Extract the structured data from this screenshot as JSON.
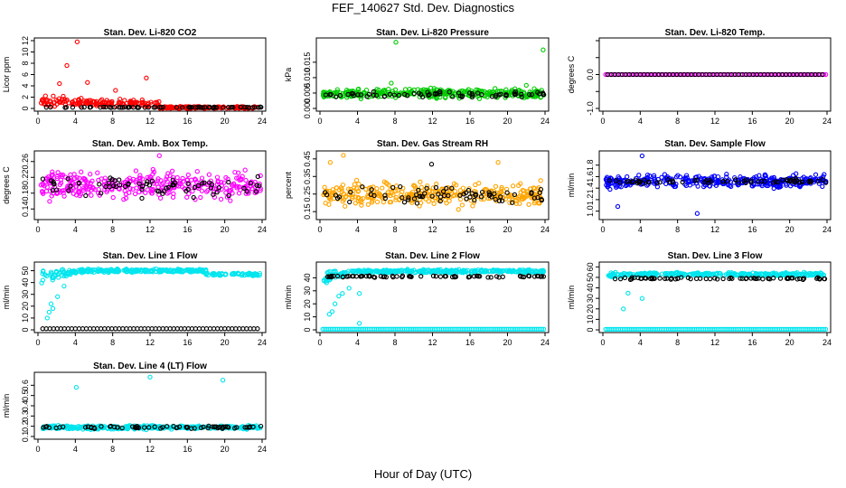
{
  "figure": {
    "title": "FEF_140627  Std. Dev. Diagnostics",
    "xlabel": "Hour of Day (UTC)"
  },
  "chart_data": [
    {
      "type": "scatter",
      "title": "Stan. Dev. Li-820 CO2",
      "ylabel": "Licor ppm",
      "xlim": [
        0,
        24
      ],
      "xticks": [
        0,
        4,
        8,
        12,
        16,
        20,
        24
      ],
      "ylim": [
        0,
        12
      ],
      "yticks": [
        0,
        2,
        4,
        6,
        8,
        10,
        12
      ],
      "ytick_labels": [
        "0",
        "2",
        "4",
        "6",
        "8",
        "10",
        "12"
      ],
      "series": [
        {
          "color": "#ff0000",
          "pattern": "decay",
          "base": 0.3,
          "level": 1.4,
          "spread": 2.0,
          "until": 13,
          "late": 0.35,
          "extra": [
            [
              4.2,
              11.8
            ],
            [
              3.1,
              7.6
            ],
            [
              2.3,
              4.4
            ],
            [
              5.3,
              4.6
            ],
            [
              11.6,
              5.4
            ],
            [
              8.3,
              3.2
            ]
          ]
        },
        {
          "color": "#000000",
          "pattern": "sparse",
          "base": 0.2,
          "spread": 0.1
        }
      ]
    },
    {
      "type": "scatter",
      "title": "Stan. Dev. Li-820 Pressure",
      "ylabel": "kPa",
      "xlim": [
        0,
        24
      ],
      "xticks": [
        0,
        4,
        8,
        12,
        16,
        20,
        24
      ],
      "ylim": [
        0,
        0.022
      ],
      "yticks": [
        0,
        0.005,
        0.01,
        0.015
      ],
      "ytick_labels": [
        "0.000",
        "0.005",
        "0.010",
        "0.015"
      ],
      "series": [
        {
          "color": "#00cc00",
          "pattern": "band",
          "base": 0.0048,
          "spread": 0.0026,
          "extra": [
            [
              8.1,
              0.0215
            ],
            [
              23.8,
              0.019
            ],
            [
              22.0,
              0.0075
            ],
            [
              7.6,
              0.0082
            ]
          ]
        },
        {
          "color": "#000000",
          "pattern": "sparse",
          "base": 0.0045,
          "spread": 0.0015
        }
      ]
    },
    {
      "type": "scatter",
      "title": "Stan. Dev. Li-820 Temp.",
      "ylabel": "degrees C",
      "xlim": [
        0,
        24
      ],
      "xticks": [
        0,
        4,
        8,
        12,
        16,
        20,
        24
      ],
      "ylim": [
        -1,
        1
      ],
      "yticks": [
        -1,
        -0.5,
        0,
        0.5,
        1
      ],
      "ytick_labels": [
        "-1.0",
        "0.0",
        "1.0"
      ],
      "series": [
        {
          "color": "#ff00ff",
          "pattern": "flat",
          "base": 0,
          "spread": 0
        },
        {
          "color": "#000000",
          "pattern": "flat-sparse",
          "base": 0,
          "spread": 0
        }
      ]
    },
    {
      "type": "scatter",
      "title": "Stan. Dev. Amb. Box Temp.",
      "ylabel": "degrees C",
      "xlim": [
        0,
        24
      ],
      "xticks": [
        0,
        4,
        8,
        12,
        16,
        20,
        24
      ],
      "ylim": [
        0.12,
        0.28
      ],
      "yticks": [
        0.14,
        0.18,
        0.22,
        0.26
      ],
      "ytick_labels": [
        "0.14",
        "0.18",
        "0.22",
        "0.26"
      ],
      "series": [
        {
          "color": "#ff00ff",
          "pattern": "band",
          "base": 0.2,
          "spread": 0.055,
          "extra": [
            [
              13.0,
              0.275
            ]
          ]
        },
        {
          "color": "#000000",
          "pattern": "sparse",
          "base": 0.2,
          "spread": 0.045
        }
      ]
    },
    {
      "type": "scatter",
      "title": "Stan. Dev. Gas Stream RH",
      "ylabel": "percent",
      "xlim": [
        0,
        24
      ],
      "xticks": [
        0,
        4,
        8,
        12,
        16,
        20,
        24
      ],
      "ylim": [
        0.12,
        0.48
      ],
      "yticks": [
        0.15,
        0.25,
        0.35,
        0.45
      ],
      "ytick_labels": [
        "0.15",
        "0.25",
        "0.35",
        "0.45"
      ],
      "series": [
        {
          "color": "#ffa500",
          "pattern": "band",
          "base": 0.25,
          "spread": 0.1,
          "extra": [
            [
              2.5,
              0.47
            ],
            [
              1.1,
              0.43
            ],
            [
              19.0,
              0.43
            ]
          ]
        },
        {
          "color": "#000000",
          "pattern": "sparse",
          "base": 0.24,
          "spread": 0.09,
          "extra": [
            [
              11.9,
              0.42
            ]
          ]
        }
      ]
    },
    {
      "type": "scatter",
      "title": "Stan. Dev. Sample Flow",
      "ylabel": "ml/min",
      "xlim": [
        0,
        24
      ],
      "xticks": [
        0,
        4,
        8,
        12,
        16,
        20,
        24
      ],
      "ylim": [
        0.9,
        2.0
      ],
      "yticks": [
        1.0,
        1.2,
        1.4,
        1.6,
        1.8
      ],
      "ytick_labels": [
        "1.0",
        "1.2",
        "1.4",
        "1.6",
        "1.8"
      ],
      "series": [
        {
          "color": "#0000ff",
          "pattern": "band",
          "base": 1.52,
          "spread": 0.18,
          "extra": [
            [
              4.2,
              1.96
            ],
            [
              10.1,
              0.96
            ],
            [
              1.6,
              1.08
            ]
          ]
        },
        {
          "color": "#000000",
          "pattern": "sparse",
          "base": 1.52,
          "spread": 0.06
        }
      ]
    },
    {
      "type": "scatter",
      "title": "Stan. Dev. Line 1 Flow",
      "ylabel": "ml/min",
      "xlim": [
        0,
        24
      ],
      "xticks": [
        0,
        4,
        8,
        12,
        16,
        20,
        24
      ],
      "ylim": [
        0,
        55
      ],
      "yticks": [
        0,
        10,
        20,
        30,
        40,
        50
      ],
      "ytick_labels": [
        "0",
        "10",
        "20",
        "30",
        "40",
        "50"
      ],
      "series": [
        {
          "color": "#00e5ee",
          "pattern": "ramp",
          "base": 50,
          "spread": 2.2,
          "ramp_until": 4.5,
          "ramp_from": 8,
          "extra": [
            [
              1.2,
              15
            ],
            [
              1.4,
              22
            ],
            [
              2.1,
              28
            ],
            [
              2.8,
              37
            ],
            [
              1.0,
              10
            ],
            [
              1.6,
              18
            ]
          ]
        },
        {
          "color": "#000000",
          "pattern": "flat-sparse",
          "base": 1,
          "spread": 0
        }
      ]
    },
    {
      "type": "scatter",
      "title": "Stan. Dev. Line 2 Flow",
      "ylabel": "ml/min",
      "xlim": [
        0,
        24
      ],
      "xticks": [
        0,
        4,
        8,
        12,
        16,
        20,
        24
      ],
      "ylim": [
        0,
        50
      ],
      "yticks": [
        0,
        10,
        20,
        30,
        40
      ],
      "ytick_labels": [
        "0",
        "10",
        "20",
        "30",
        "40"
      ],
      "series": [
        {
          "color": "#00e5ee",
          "pattern": "ramp2",
          "base": 45,
          "spread": 2,
          "ramp_until": 3.5,
          "ramp_from": 10,
          "extra": [
            [
              1.0,
              12
            ],
            [
              1.3,
              14
            ],
            [
              1.6,
              20
            ],
            [
              2.0,
              26
            ],
            [
              2.4,
              28
            ],
            [
              3.1,
              32
            ],
            [
              4.2,
              5
            ],
            [
              4.2,
              28
            ]
          ]
        },
        {
          "color": "#00e5ee",
          "pattern": "flat",
          "base": 0.5,
          "spread": 0
        },
        {
          "color": "#000000",
          "pattern": "sparse",
          "base": 41,
          "spread": 1.2
        }
      ]
    },
    {
      "type": "scatter",
      "title": "Stan. Dev. Line 3 Flow",
      "ylabel": "ml/min",
      "xlim": [
        0,
        24
      ],
      "xticks": [
        0,
        4,
        8,
        12,
        16,
        20,
        24
      ],
      "ylim": [
        0,
        62
      ],
      "yticks": [
        0,
        10,
        20,
        30,
        40,
        50,
        60
      ],
      "ytick_labels": [
        "0",
        "10",
        "20",
        "30",
        "40",
        "50",
        "60"
      ],
      "series": [
        {
          "color": "#00e5ee",
          "pattern": "ramp2",
          "base": 53,
          "spread": 2.5,
          "ramp_until": 3.0,
          "ramp_from": 40,
          "extra": [
            [
              2.2,
              20
            ],
            [
              4.2,
              30
            ],
            [
              2.7,
              35
            ]
          ]
        },
        {
          "color": "#00e5ee",
          "pattern": "flat",
          "base": 0.5,
          "spread": 0
        },
        {
          "color": "#000000",
          "pattern": "sparse",
          "base": 49,
          "spread": 1.5
        }
      ]
    },
    {
      "type": "scatter",
      "title": "Stan. Dev. Line 4 (LT) Flow",
      "ylabel": "ml/min",
      "xlim": [
        0,
        24
      ],
      "xticks": [
        0,
        4,
        8,
        12,
        16,
        20,
        24
      ],
      "ylim": [
        0.1,
        0.7
      ],
      "yticks": [
        0.1,
        0.2,
        0.3,
        0.4,
        0.5,
        0.6
      ],
      "ytick_labels": [
        "0.1",
        "0.2",
        "0.3",
        "0.4",
        "0.5",
        "0.6"
      ],
      "series": [
        {
          "color": "#00e5ee",
          "pattern": "band",
          "base": 0.19,
          "spread": 0.03,
          "extra": [
            [
              4.1,
              0.58
            ],
            [
              12.0,
              0.68
            ],
            [
              19.8,
              0.65
            ]
          ]
        },
        {
          "color": "#000000",
          "pattern": "sparse",
          "base": 0.19,
          "spread": 0.025
        }
      ]
    }
  ]
}
